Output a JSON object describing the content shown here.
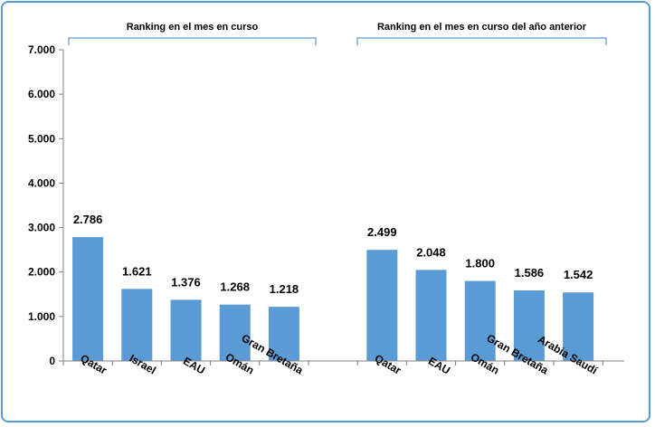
{
  "chart_data": {
    "type": "bar",
    "colors": {
      "bar": "#5b9bd5",
      "bracket": "#5b9bd5",
      "axis": "#808080"
    },
    "ylim": [
      0,
      7000
    ],
    "yticks": [
      0,
      1000,
      2000,
      3000,
      4000,
      5000,
      6000,
      7000
    ],
    "ytick_labels": [
      "0",
      "1.000",
      "2.000",
      "3.000",
      "4.000",
      "5.000",
      "6.000",
      "7.000"
    ],
    "grid": false,
    "groups": [
      {
        "title": "Ranking en el mes en curso",
        "categories": [
          "Qatar",
          "Israel",
          "EAU",
          "Omán",
          "Gran Bretaña"
        ],
        "values": [
          2786,
          1621,
          1376,
          1268,
          1218
        ],
        "value_labels": [
          "2.786",
          "1.621",
          "1.376",
          "1.268",
          "1.218"
        ]
      },
      {
        "title": "Ranking en el mes en curso del año anterior",
        "categories": [
          "Qatar",
          "EAU",
          "Omán",
          "Gran Bretaña",
          "Arabia Saudí"
        ],
        "values": [
          2499,
          2048,
          1800,
          1586,
          1542
        ],
        "value_labels": [
          "2.499",
          "2.048",
          "1.800",
          "1.586",
          "1.542"
        ]
      }
    ]
  }
}
